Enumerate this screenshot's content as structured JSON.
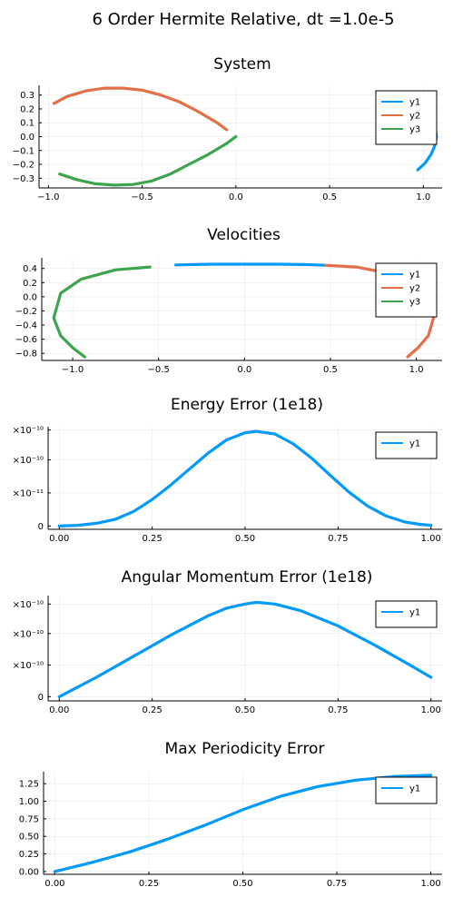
{
  "figure_title": "6 Order Hermite Relative, dt =1.0e-5",
  "chart_data": [
    {
      "type": "line",
      "title": "System",
      "xlim": [
        -1.05,
        1.1
      ],
      "ylim": [
        -0.37,
        0.37
      ],
      "xticks": [
        -1.0,
        -0.5,
        0.0,
        0.5,
        1.0
      ],
      "xtick_labels": [
        "−1.0",
        "−0.5",
        "0.0",
        "0.5",
        "1.0"
      ],
      "yticks": [
        -0.3,
        -0.2,
        -0.1,
        0.0,
        0.1,
        0.2,
        0.3
      ],
      "ytick_labels": [
        "−0.3",
        "−0.2",
        "−0.1",
        "0.0",
        "0.1",
        "0.2",
        "0.3"
      ],
      "grid": true,
      "legend": "top-right",
      "series": [
        {
          "name": "y1",
          "color": "#009AFA",
          "points": [
            [
              0.97,
              -0.24
            ],
            [
              1.01,
              -0.19
            ],
            [
              1.04,
              -0.13
            ],
            [
              1.06,
              -0.07
            ],
            [
              1.07,
              0.0
            ],
            [
              1.065,
              0.05
            ]
          ]
        },
        {
          "name": "y2",
          "color": "#E26F46",
          "points": [
            [
              -0.97,
              0.24
            ],
            [
              -0.9,
              0.29
            ],
            [
              -0.8,
              0.33
            ],
            [
              -0.7,
              0.35
            ],
            [
              -0.6,
              0.35
            ],
            [
              -0.5,
              0.335
            ],
            [
              -0.4,
              0.3
            ],
            [
              -0.3,
              0.25
            ],
            [
              -0.2,
              0.18
            ],
            [
              -0.1,
              0.1
            ],
            [
              -0.05,
              0.05
            ]
          ]
        },
        {
          "name": "y3",
          "color": "#3DA44D",
          "points": [
            [
              -0.94,
              -0.27
            ],
            [
              -0.85,
              -0.31
            ],
            [
              -0.75,
              -0.34
            ],
            [
              -0.65,
              -0.35
            ],
            [
              -0.55,
              -0.345
            ],
            [
              -0.45,
              -0.32
            ],
            [
              -0.35,
              -0.27
            ],
            [
              -0.25,
              -0.2
            ],
            [
              -0.15,
              -0.13
            ],
            [
              -0.05,
              -0.05
            ],
            [
              0.0,
              0.0
            ]
          ]
        }
      ]
    },
    {
      "type": "line",
      "title": "Velocities",
      "xlim": [
        -1.18,
        1.15
      ],
      "ylim": [
        -0.9,
        0.55
      ],
      "xticks": [
        -1.0,
        -0.5,
        0.0,
        0.5,
        1.0
      ],
      "xtick_labels": [
        "−1.0",
        "−0.5",
        "0.0",
        "0.5",
        "1.0"
      ],
      "yticks": [
        -0.8,
        -0.6,
        -0.4,
        -0.2,
        0.0,
        0.2,
        0.4
      ],
      "ytick_labels": [
        "−0.8",
        "−0.6",
        "−0.4",
        "−0.2",
        "0.0",
        "0.2",
        "0.4"
      ],
      "grid": true,
      "legend": "top-right",
      "series": [
        {
          "name": "y1",
          "color": "#009AFA",
          "points": [
            [
              -0.4,
              0.45
            ],
            [
              -0.2,
              0.46
            ],
            [
              0.0,
              0.46
            ],
            [
              0.2,
              0.46
            ],
            [
              0.35,
              0.455
            ],
            [
              0.47,
              0.445
            ]
          ]
        },
        {
          "name": "y2",
          "color": "#E26F46",
          "points": [
            [
              0.47,
              0.445
            ],
            [
              0.65,
              0.42
            ],
            [
              0.8,
              0.35
            ],
            [
              0.95,
              0.2
            ],
            [
              1.05,
              0.0
            ],
            [
              1.1,
              -0.3
            ],
            [
              1.07,
              -0.55
            ],
            [
              1.01,
              -0.72
            ],
            [
              0.95,
              -0.85
            ]
          ]
        },
        {
          "name": "y3",
          "color": "#3DA44D",
          "points": [
            [
              -0.55,
              0.42
            ],
            [
              -0.75,
              0.38
            ],
            [
              -0.95,
              0.25
            ],
            [
              -1.07,
              0.05
            ],
            [
              -1.11,
              -0.3
            ],
            [
              -1.07,
              -0.55
            ],
            [
              -1.0,
              -0.72
            ],
            [
              -0.93,
              -0.85
            ]
          ]
        }
      ]
    },
    {
      "type": "line",
      "title": "Energy Error (1e18)",
      "xlim": [
        -0.03,
        1.03
      ],
      "ylim": [
        -5e-12,
        1.5e-10
      ],
      "xticks": [
        0.0,
        0.25,
        0.5,
        0.75,
        1.0
      ],
      "xtick_labels": [
        "0.00",
        "0.25",
        "0.50",
        "0.75",
        "1.00"
      ],
      "yticks": [
        0,
        5e-11,
        1e-10,
        1.45e-10
      ],
      "ytick_labels": [
        "0",
        "×10⁻¹¹",
        "×10⁻¹⁰",
        "×10⁻¹⁰"
      ],
      "grid": true,
      "legend": "top-right",
      "series": [
        {
          "name": "y1",
          "color": "#009AFA",
          "points": [
            [
              0.0,
              0.0
            ],
            [
              0.05,
              1e-12
            ],
            [
              0.1,
              4e-12
            ],
            [
              0.15,
              1e-11
            ],
            [
              0.2,
              2.2e-11
            ],
            [
              0.25,
              4e-11
            ],
            [
              0.3,
              6.2e-11
            ],
            [
              0.35,
              8.6e-11
            ],
            [
              0.4,
              1.1e-10
            ],
            [
              0.45,
              1.3e-10
            ],
            [
              0.5,
              1.41e-10
            ],
            [
              0.53,
              1.43e-10
            ],
            [
              0.58,
              1.39e-10
            ],
            [
              0.63,
              1.24e-10
            ],
            [
              0.68,
              1.02e-10
            ],
            [
              0.73,
              7.6e-11
            ],
            [
              0.78,
              5.1e-11
            ],
            [
              0.83,
              3e-11
            ],
            [
              0.88,
              1.5e-11
            ],
            [
              0.93,
              6e-12
            ],
            [
              0.97,
              2.5e-12
            ],
            [
              1.0,
              1e-12
            ]
          ]
        }
      ]
    },
    {
      "type": "line",
      "title": "Angular Momentum Error (1e18)",
      "xlim": [
        -0.03,
        1.03
      ],
      "ylim": [
        -5e-12,
        1.2e-10
      ],
      "xticks": [
        0.0,
        0.25,
        0.5,
        0.75,
        1.0
      ],
      "xtick_labels": [
        "0.00",
        "0.25",
        "0.50",
        "0.75",
        "1.00"
      ],
      "yticks": [
        0,
        3.75e-11,
        7.5e-11,
        1.1e-10
      ],
      "ytick_labels": [
        "0",
        "×10⁻¹⁰",
        "×10⁻¹⁰",
        "×10⁻¹⁰"
      ],
      "grid": true,
      "legend": "top-right",
      "series": [
        {
          "name": "y1",
          "color": "#009AFA",
          "points": [
            [
              0.0,
              0.0
            ],
            [
              0.1,
              2.3e-11
            ],
            [
              0.2,
              4.8e-11
            ],
            [
              0.3,
              7.3e-11
            ],
            [
              0.4,
              9.6e-11
            ],
            [
              0.45,
              1.05e-10
            ],
            [
              0.5,
              1.1e-10
            ],
            [
              0.53,
              1.12e-10
            ],
            [
              0.58,
              1.1e-10
            ],
            [
              0.65,
              1.02e-10
            ],
            [
              0.75,
              8.4e-11
            ],
            [
              0.85,
              6.1e-11
            ],
            [
              0.95,
              3.6e-11
            ],
            [
              1.0,
              2.3e-11
            ]
          ]
        }
      ]
    },
    {
      "type": "line",
      "title": "Max Periodicity Error",
      "xlim": [
        -0.03,
        1.03
      ],
      "ylim": [
        -0.04,
        1.42
      ],
      "xticks": [
        0.0,
        0.25,
        0.5,
        0.75,
        1.0
      ],
      "xtick_labels": [
        "0.00",
        "0.25",
        "0.50",
        "0.75",
        "1.00"
      ],
      "yticks": [
        0.0,
        0.25,
        0.5,
        0.75,
        1.0,
        1.25
      ],
      "ytick_labels": [
        "0.00",
        "0.25",
        "0.50",
        "0.75",
        "1.00",
        "1.25"
      ],
      "grid": true,
      "legend": "top-right",
      "series": [
        {
          "name": "y1",
          "color": "#009AFA",
          "points": [
            [
              0.0,
              0.0
            ],
            [
              0.1,
              0.13
            ],
            [
              0.2,
              0.28
            ],
            [
              0.3,
              0.46
            ],
            [
              0.4,
              0.66
            ],
            [
              0.5,
              0.88
            ],
            [
              0.6,
              1.07
            ],
            [
              0.7,
              1.21
            ],
            [
              0.8,
              1.3
            ],
            [
              0.9,
              1.35
            ],
            [
              1.0,
              1.37
            ]
          ]
        }
      ]
    }
  ]
}
